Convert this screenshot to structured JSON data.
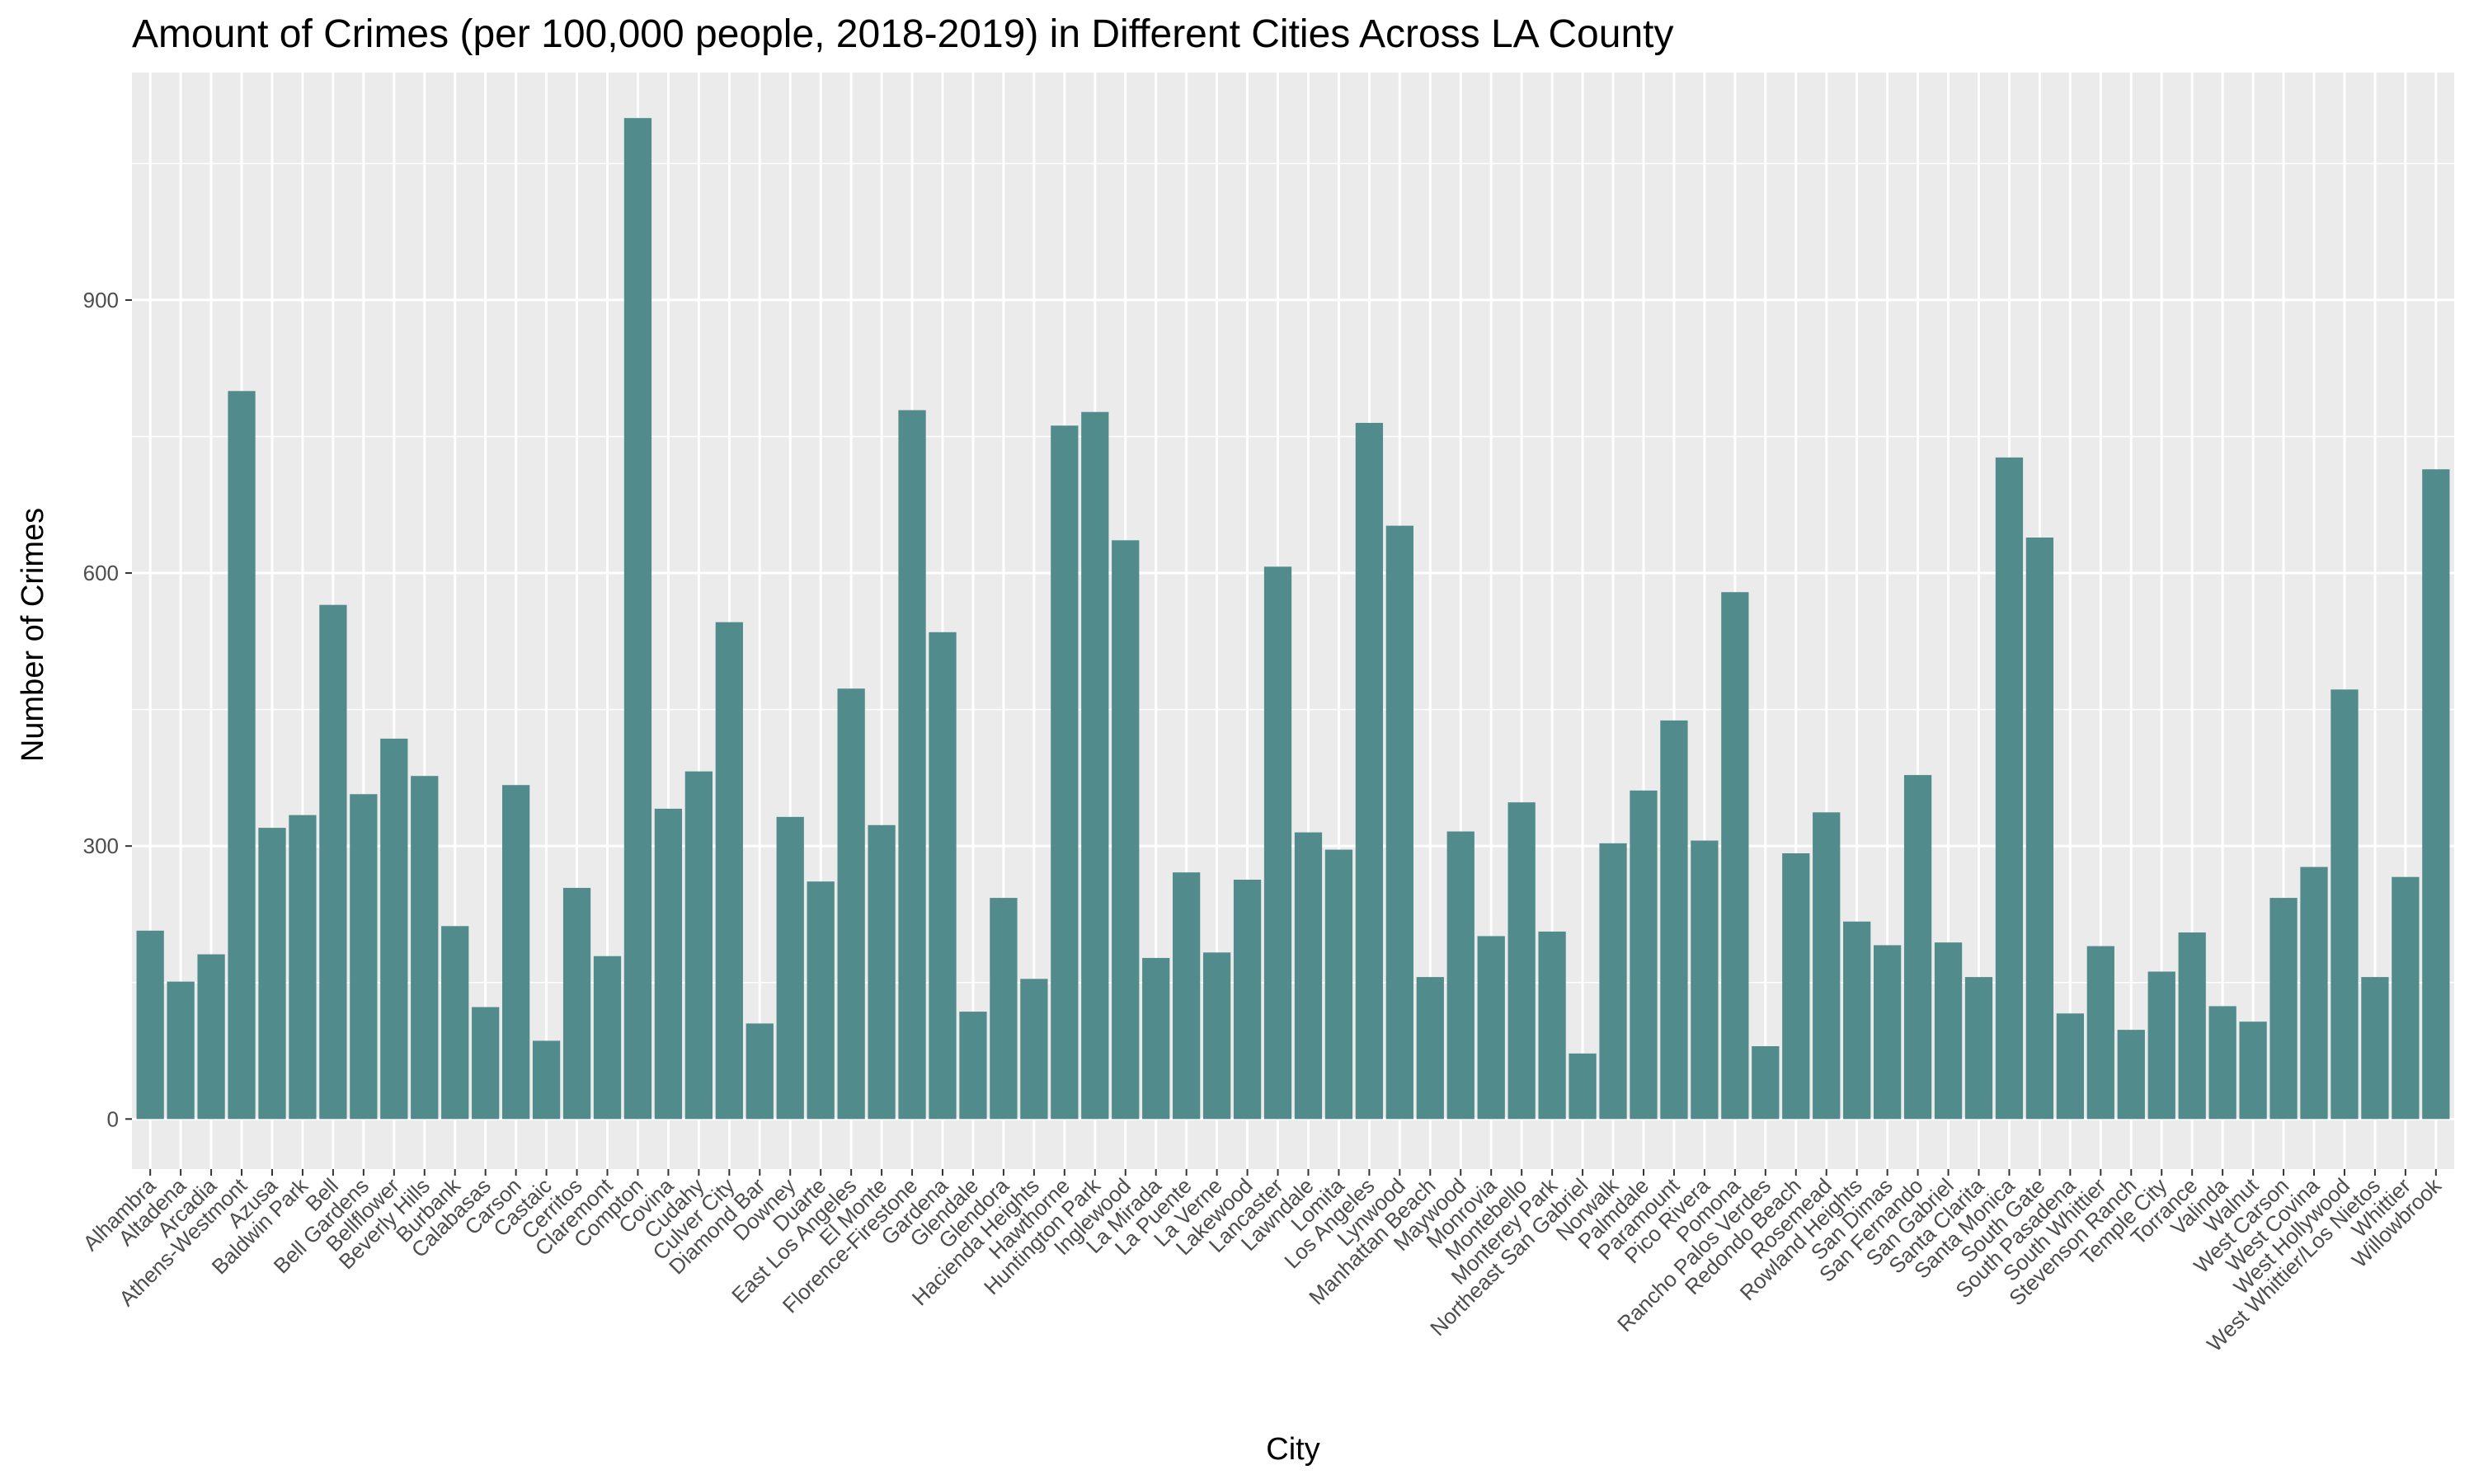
{
  "chart_data": {
    "type": "bar",
    "title": "Amount of Crimes (per 100,000 people, 2018-2019) in Different Cities Across LA County",
    "xlabel": "City",
    "ylabel": "Number of Crimes",
    "ylim": [
      -55,
      1150
    ],
    "yticks": [
      0,
      300,
      600,
      900
    ],
    "grid": true,
    "legend": "none",
    "bar_color": "#528b8b",
    "panel_color": "#ebebeb",
    "grid_color": "#ffffff",
    "categories": [
      "Alhambra",
      "Altadena",
      "Arcadia",
      "Athens-Westmont",
      "Azusa",
      "Baldwin Park",
      "Bell",
      "Bell Gardens",
      "Bellflower",
      "Beverly Hills",
      "Burbank",
      "Calabasas",
      "Carson",
      "Castaic",
      "Cerritos",
      "Claremont",
      "Compton",
      "Covina",
      "Cudahy",
      "Culver City",
      "Diamond Bar",
      "Downey",
      "Duarte",
      "East Los Angeles",
      "El Monte",
      "Florence-Firestone",
      "Gardena",
      "Glendale",
      "Glendora",
      "Hacienda Heights",
      "Hawthorne",
      "Huntington Park",
      "Inglewood",
      "La Mirada",
      "La Puente",
      "La Verne",
      "Lakewood",
      "Lancaster",
      "Lawndale",
      "Lomita",
      "Los Angeles",
      "Lynwood",
      "Manhattan Beach",
      "Maywood",
      "Monrovia",
      "Montebello",
      "Monterey Park",
      "Northeast San Gabriel",
      "Norwalk",
      "Palmdale",
      "Paramount",
      "Pico Rivera",
      "Pomona",
      "Rancho Palos Verdes",
      "Redondo Beach",
      "Rosemead",
      "Rowland Heights",
      "San Dimas",
      "San Fernando",
      "San Gabriel",
      "Santa Clarita",
      "Santa Monica",
      "South Gate",
      "South Pasadena",
      "South Whittier",
      "Stevenson Ranch",
      "Temple City",
      "Torrance",
      "Valinda",
      "Walnut",
      "West Carson",
      "West Covina",
      "West Hollywood",
      "West Whittier/Los Nietos",
      "Whittier",
      "Willowbrook"
    ],
    "values": [
      207,
      151,
      181,
      800,
      320,
      334,
      565,
      357,
      418,
      377,
      212,
      123,
      367,
      86,
      254,
      179,
      1100,
      341,
      382,
      546,
      105,
      332,
      261,
      473,
      323,
      779,
      535,
      118,
      243,
      154,
      762,
      777,
      636,
      177,
      271,
      183,
      263,
      607,
      315,
      296,
      765,
      652,
      156,
      316,
      201,
      348,
      206,
      72,
      303,
      361,
      438,
      306,
      579,
      80,
      292,
      337,
      217,
      191,
      378,
      194,
      156,
      727,
      639,
      116,
      190,
      98,
      162,
      205,
      124,
      107,
      243,
      277,
      472,
      156,
      266,
      714
    ]
  }
}
